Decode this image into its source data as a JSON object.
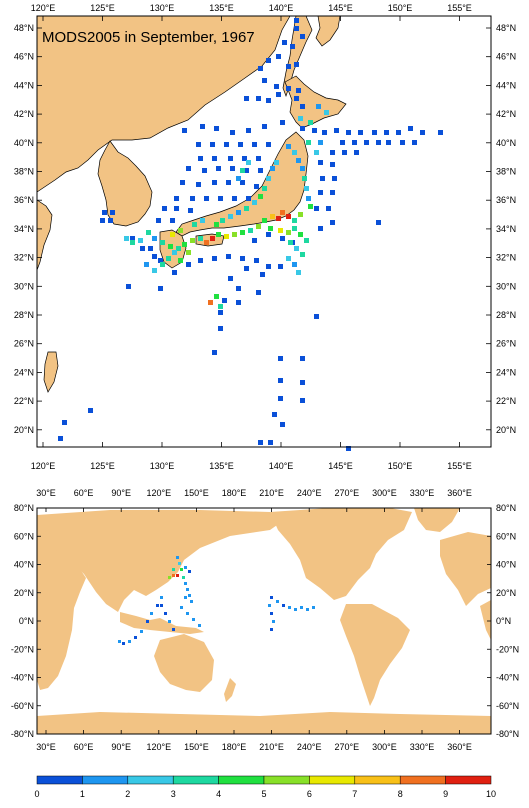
{
  "colors": {
    "land": "#F2C384",
    "ocean": "#FFFFFF",
    "frame": "#000000",
    "scale": [
      "#0A50D8",
      "#1E96F0",
      "#38C8E6",
      "#1ED8A0",
      "#20E040",
      "#88E028",
      "#E8E800",
      "#F8C018",
      "#F07020",
      "#E02010"
    ]
  },
  "map1": {
    "title": "MODS2005 in September, 1967",
    "lon_ticks": [
      "120°E",
      "125°E",
      "130°E",
      "135°E",
      "140°E",
      "145°E",
      "150°E",
      "155°E"
    ],
    "lat_ticks": [
      "48°N",
      "46°N",
      "44°N",
      "42°N",
      "40°N",
      "38°N",
      "36°N",
      "34°N",
      "32°N",
      "30°N",
      "28°N",
      "26°N",
      "24°N",
      "22°N",
      "20°N"
    ],
    "lon_range": [
      119,
      157
    ],
    "lat_range": [
      18.5,
      49.5
    ]
  },
  "map2": {
    "lon_ticks": [
      "30°E",
      "60°E",
      "90°E",
      "120°E",
      "150°E",
      "180°E",
      "210°E",
      "240°E",
      "270°E",
      "300°E",
      "330°E",
      "360°E"
    ],
    "lat_ticks": [
      "80°N",
      "60°N",
      "40°N",
      "20°N",
      "0°N",
      "-20°N",
      "-40°N",
      "-60°N",
      "-80°N"
    ]
  },
  "colorbar": {
    "labels": [
      "0",
      "1",
      "2",
      "3",
      "4",
      "5",
      "6",
      "7",
      "8",
      "9",
      "10"
    ]
  }
}
